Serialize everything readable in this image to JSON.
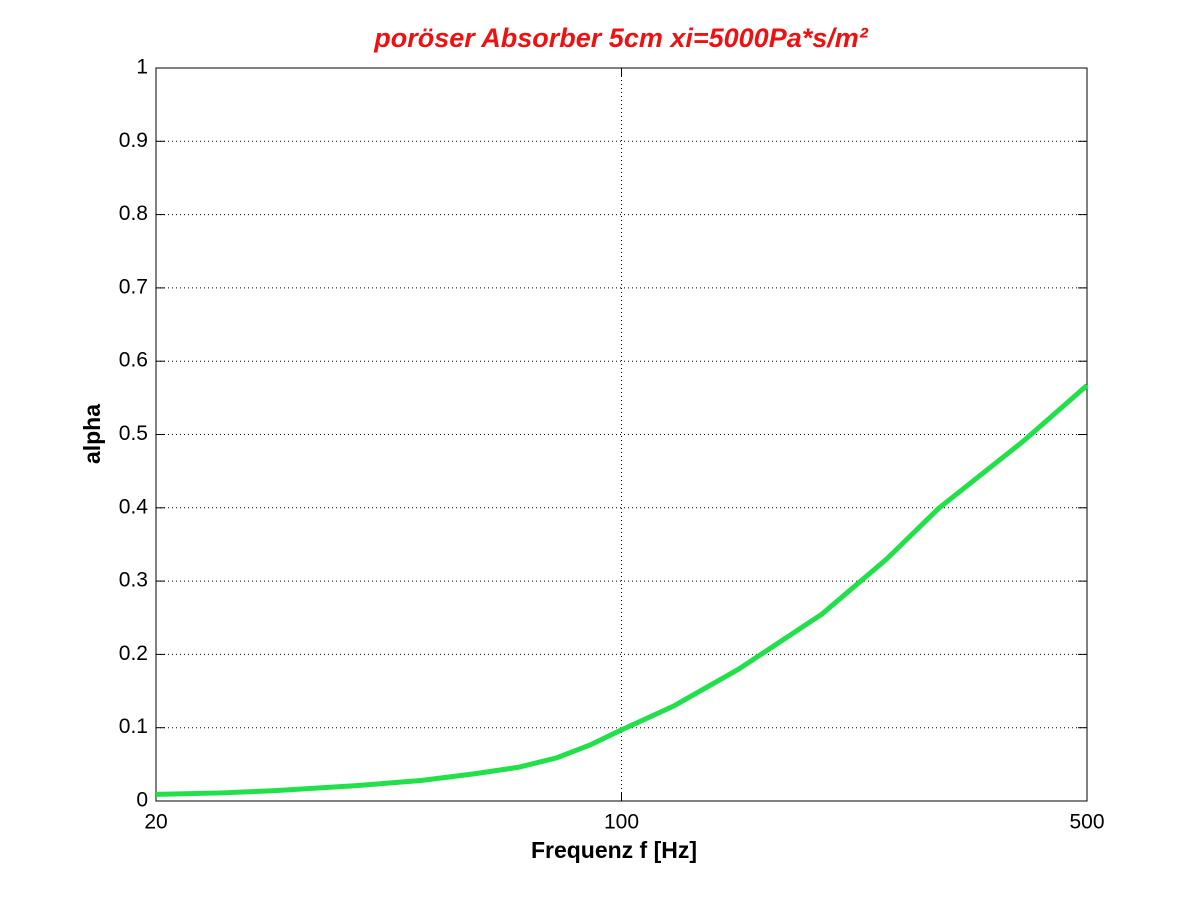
{
  "chart_data": {
    "type": "line",
    "title": "poröser Absorber 5cm xi=5000Pa*s/m²",
    "xlabel": "Frequenz f [Hz]",
    "ylabel": "alpha",
    "xscale": "log",
    "grid": true,
    "x": [
      20,
      25,
      30,
      40,
      50,
      60,
      70,
      80,
      90,
      100,
      120,
      150,
      200,
      250,
      300,
      400,
      500
    ],
    "series": [
      {
        "color": "#22e04a",
        "values": [
          0.009,
          0.011,
          0.014,
          0.021,
          0.028,
          0.037,
          0.046,
          0.059,
          0.077,
          0.097,
          0.13,
          0.18,
          0.255,
          0.33,
          0.4,
          0.49,
          0.567
        ]
      }
    ],
    "xlim": [
      20,
      500
    ],
    "xticks": [
      20,
      100,
      500
    ],
    "ylim": [
      0,
      1
    ],
    "yticks": [
      0,
      0.1,
      0.2,
      0.3,
      0.4,
      0.5,
      0.6,
      0.7,
      0.8,
      0.9,
      1
    ]
  }
}
